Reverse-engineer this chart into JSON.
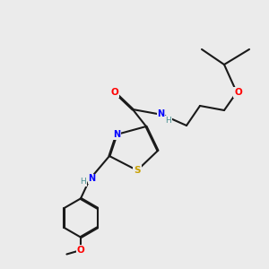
{
  "bg_color": "#ebebeb",
  "bond_color": "#1a1a1a",
  "N_color": "#0000ff",
  "O_color": "#ff0000",
  "S_color": "#c8a000",
  "H_color": "#4a9090",
  "line_width": 1.5,
  "dbo": 0.018,
  "xlim": [
    0,
    10
  ],
  "ylim": [
    0,
    10
  ]
}
